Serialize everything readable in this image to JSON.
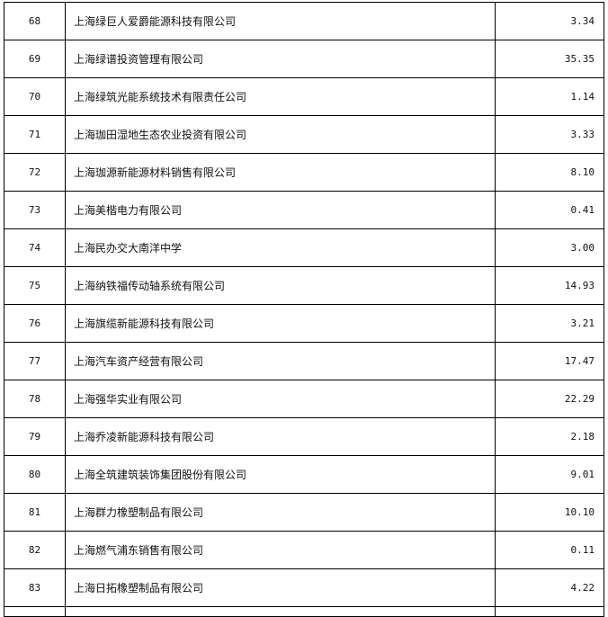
{
  "rows": [
    {
      "no": "68",
      "name": "上海绿巨人爱爵能源科技有限公司",
      "value": "3.34"
    },
    {
      "no": "69",
      "name": "上海绿谱投资管理有限公司",
      "value": "35.35"
    },
    {
      "no": "70",
      "name": "上海绿筑光能系统技术有限责任公司",
      "value": "1.14"
    },
    {
      "no": "71",
      "name": "上海珈田湿地生态农业投资有限公司",
      "value": "3.33"
    },
    {
      "no": "72",
      "name": "上海珈源新能源材料销售有限公司",
      "value": "8.10"
    },
    {
      "no": "73",
      "name": "上海美楷电力有限公司",
      "value": "0.41"
    },
    {
      "no": "74",
      "name": "上海民办交大南洋中学",
      "value": "3.00"
    },
    {
      "no": "75",
      "name": "上海纳铁福传动轴系统有限公司",
      "value": "14.93"
    },
    {
      "no": "76",
      "name": "上海旗缆新能源科技有限公司",
      "value": "3.21"
    },
    {
      "no": "77",
      "name": "上海汽车资产经营有限公司",
      "value": "17.47"
    },
    {
      "no": "78",
      "name": "上海强华实业有限公司",
      "value": "22.29"
    },
    {
      "no": "79",
      "name": "上海乔凌新能源科技有限公司",
      "value": "2.18"
    },
    {
      "no": "80",
      "name": "上海全筑建筑装饰集团股份有限公司",
      "value": "9.01"
    },
    {
      "no": "81",
      "name": "上海群力橡塑制品有限公司",
      "value": "10.10"
    },
    {
      "no": "82",
      "name": "上海燃气浦东销售有限公司",
      "value": "0.11"
    },
    {
      "no": "83",
      "name": "上海日拓橡塑制品有限公司",
      "value": "4.22"
    }
  ]
}
